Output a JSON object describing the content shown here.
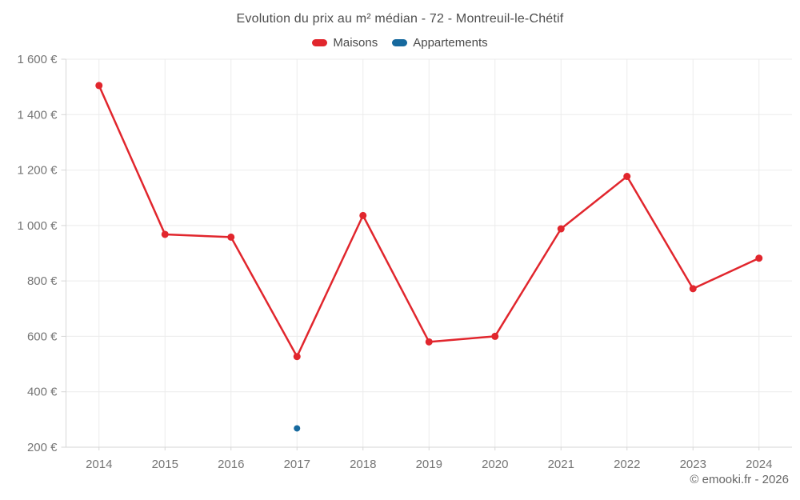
{
  "chart": {
    "title": "Evolution du prix au m² médian - 72 - Montreuil-le-Chétif",
    "copyright": "© emooki.fr - 2026"
  },
  "chart_data": {
    "type": "line",
    "title": "Evolution du prix au m² médian - 72 - Montreuil-le-Chétif",
    "categories": [
      "2014",
      "2015",
      "2016",
      "2017",
      "2018",
      "2019",
      "2020",
      "2021",
      "2022",
      "2023",
      "2024"
    ],
    "series": [
      {
        "id": "maisons",
        "name": "Maisons",
        "color": "#e1262d",
        "values": [
          1505,
          968,
          958,
          527,
          1036,
          580,
          600,
          988,
          1177,
          772,
          882
        ]
      },
      {
        "id": "appartements",
        "name": "Appartements",
        "color": "#16699e",
        "values": [
          null,
          null,
          null,
          268,
          null,
          null,
          null,
          null,
          null,
          null,
          null
        ]
      }
    ],
    "xlabel": "",
    "ylabel": "",
    "unit": "€",
    "ylim": [
      200,
      1600
    ],
    "y_ticks": [
      {
        "v": 200,
        "label": "200 €"
      },
      {
        "v": 400,
        "label": "400 €"
      },
      {
        "v": 600,
        "label": "600 €"
      },
      {
        "v": 800,
        "label": "800 €"
      },
      {
        "v": 1000,
        "label": "1 000 €"
      },
      {
        "v": 1200,
        "label": "1 200 €"
      },
      {
        "v": 1400,
        "label": "1 400 €"
      },
      {
        "v": 1600,
        "label": "1 600 €"
      }
    ],
    "grid": true,
    "legend_position": "top"
  }
}
